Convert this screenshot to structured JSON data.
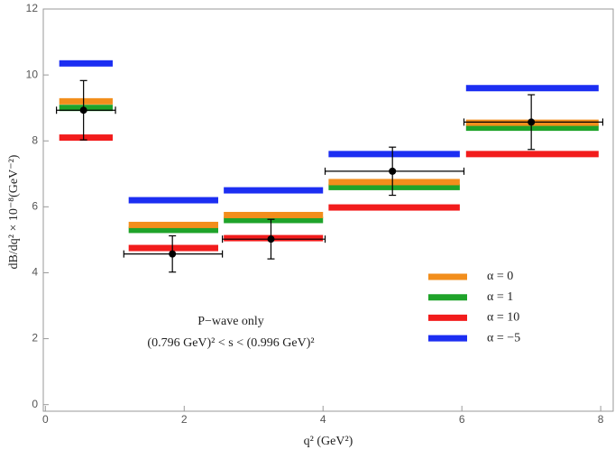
{
  "chart_data": {
    "type": "binned-bars",
    "x_label": "q² (GeV²)",
    "y_label": "dB/dq² × 10⁻⁸(GeV⁻²)",
    "xlim": [
      -0.03,
      8.18
    ],
    "ylim": [
      -0.2,
      12
    ],
    "xticks": [
      0,
      2,
      4,
      6,
      8
    ],
    "yticks": [
      0,
      2,
      4,
      6,
      8,
      10,
      12
    ],
    "bar_ranges": [
      [
        0.2,
        0.97
      ],
      [
        1.2,
        2.49
      ],
      [
        2.57,
        4.0
      ],
      [
        4.08,
        5.97
      ],
      [
        6.06,
        7.97
      ]
    ],
    "series": [
      {
        "name": "α = −5",
        "color": "#1c2ef2",
        "values": [
          10.35,
          6.2,
          6.5,
          7.6,
          9.6
        ]
      },
      {
        "name": "α = 10",
        "color": "#f21c1c",
        "values": [
          8.1,
          4.75,
          5.05,
          5.98,
          7.6
        ]
      },
      {
        "name": "α = 1",
        "color": "#1fa32a",
        "values": [
          9.0,
          5.3,
          5.6,
          6.6,
          8.4
        ]
      },
      {
        "name": "α = 0",
        "color": "#f28e1c",
        "values": [
          9.2,
          5.45,
          5.75,
          6.75,
          8.55
        ]
      }
    ],
    "legend_order": [
      3,
      2,
      1,
      0
    ],
    "points": {
      "x": [
        0.55,
        1.83,
        3.25,
        5.0,
        7.0
      ],
      "values": [
        8.93,
        4.57,
        5.02,
        7.08,
        8.57
      ],
      "errors": [
        0.9,
        0.55,
        0.6,
        0.73,
        0.83
      ],
      "x_ranges": [
        [
          0.16,
          1.01
        ],
        [
          1.13,
          2.55
        ],
        [
          2.55,
          4.03
        ],
        [
          4.03,
          6.03
        ],
        [
          6.03,
          8.03
        ]
      ]
    },
    "annotation": [
      "P−wave only",
      "(0.796 GeV)² < s < (0.996 GeV)²"
    ]
  }
}
